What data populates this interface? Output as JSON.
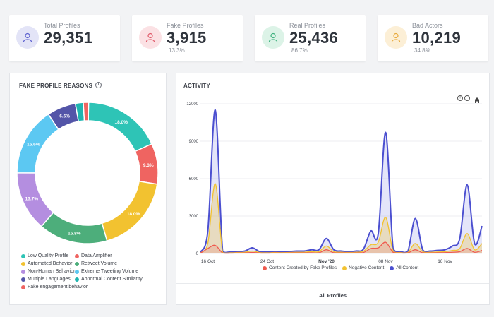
{
  "stats": [
    {
      "label": "Total Profiles",
      "value": "29,351",
      "percent": "",
      "icon": "user-icon",
      "color": "#5b5fcf",
      "bg": "#e3e4f7"
    },
    {
      "label": "Fake Profiles",
      "value": "3,915",
      "percent": "13.3%",
      "icon": "user-icon",
      "color": "#e05a6a",
      "bg": "#fbe1e4"
    },
    {
      "label": "Real Profiles",
      "value": "25,436",
      "percent": "86.7%",
      "icon": "user-icon",
      "color": "#3fb27f",
      "bg": "#dcf3e7"
    },
    {
      "label": "Bad Actors",
      "value": "10,219",
      "percent": "34.8%",
      "icon": "user-icon",
      "color": "#e8a93b",
      "bg": "#fcefd6"
    }
  ],
  "fake_reasons": {
    "title": "FAKE PROFILE REASONS",
    "info_icon": "info-icon",
    "legend": [
      {
        "label": "Low Quality Profile",
        "color": "#2ec4b6"
      },
      {
        "label": "Data Amplifier",
        "color": "#ef6461"
      },
      {
        "label": "Automated Behavior",
        "color": "#f2c230"
      },
      {
        "label": "Retweet Volume",
        "color": "#4dae7b"
      },
      {
        "label": "Non-Human Behavior",
        "color": "#b48ee0"
      },
      {
        "label": "Extreme Tweeting Volume",
        "color": "#5cc8f2"
      },
      {
        "label": "Multiple Languages",
        "color": "#5355a8"
      },
      {
        "label": "Abnormal Content Similarity",
        "color": "#1fb5b0"
      },
      {
        "label": "Fake engagement behavior",
        "color": "#ef6461"
      }
    ]
  },
  "chart_data": [
    {
      "type": "pie",
      "title": "FAKE PROFILE REASONS",
      "donut": true,
      "slices": [
        {
          "label": "Low Quality Profile",
          "value": 18.0,
          "text": "18.0%",
          "color": "#2ec4b6"
        },
        {
          "label": "Data Amplifier",
          "value": 9.3,
          "text": "9.3%",
          "color": "#ef6461"
        },
        {
          "label": "Automated Behavior",
          "value": 18.0,
          "text": "18.0%",
          "color": "#f2c230"
        },
        {
          "label": "Retweet Volume",
          "value": 15.8,
          "text": "15.8%",
          "color": "#4dae7b"
        },
        {
          "label": "Non-Human Behavior",
          "value": 13.7,
          "text": "13.7%",
          "color": "#b48ee0"
        },
        {
          "label": "Extreme Tweeting Volume",
          "value": 15.6,
          "text": "15.6%",
          "color": "#5cc8f2"
        },
        {
          "label": "Multiple Languages",
          "value": 6.6,
          "text": "6.6%",
          "color": "#5355a8"
        },
        {
          "label": "Abnormal Content Similarity",
          "value": 1.8,
          "text": "",
          "color": "#1fb5b0"
        },
        {
          "label": "Fake engagement behavior",
          "value": 1.2,
          "text": "",
          "color": "#ef6461"
        }
      ]
    },
    {
      "type": "area",
      "title": "ACTIVITY",
      "ylim": [
        0,
        12000
      ],
      "yticks": [
        "12000",
        "9000",
        "6000",
        "3000",
        "0"
      ],
      "xticks": [
        {
          "label": "16 Oct",
          "x": 1,
          "bold": false
        },
        {
          "label": "24 Oct",
          "x": 9,
          "bold": false
        },
        {
          "label": "Nov '20",
          "x": 17,
          "bold": true
        },
        {
          "label": "08 Nov",
          "x": 25,
          "bold": false
        },
        {
          "label": "16 Nov",
          "x": 33,
          "bold": false
        }
      ],
      "x": [
        0,
        1,
        2,
        3,
        4,
        5,
        6,
        7,
        8,
        9,
        10,
        11,
        12,
        13,
        14,
        15,
        16,
        17,
        18,
        19,
        20,
        21,
        22,
        23,
        24,
        25,
        26,
        27,
        28,
        29,
        30,
        31,
        32,
        33,
        34,
        35,
        36,
        37,
        38
      ],
      "series": [
        {
          "name": "All Content",
          "color": "#4b4fd0",
          "fill": "rgba(105,110,220,0.18)",
          "values": [
            100,
            1800,
            11500,
            150,
            120,
            150,
            200,
            450,
            150,
            120,
            150,
            130,
            150,
            200,
            200,
            300,
            300,
            1200,
            300,
            200,
            150,
            200,
            350,
            1800,
            1600,
            9700,
            400,
            150,
            180,
            2800,
            300,
            200,
            250,
            300,
            600,
            1200,
            5500,
            800,
            2200
          ]
        },
        {
          "name": "Negative Content",
          "color": "#f2c230",
          "fill": "rgba(242,194,48,0.28)",
          "values": [
            50,
            800,
            5600,
            80,
            60,
            80,
            100,
            200,
            80,
            60,
            80,
            70,
            80,
            100,
            100,
            150,
            150,
            600,
            150,
            100,
            80,
            100,
            180,
            700,
            900,
            2900,
            200,
            80,
            90,
            800,
            150,
            100,
            120,
            150,
            250,
            400,
            1600,
            300,
            800
          ]
        },
        {
          "name": "Content Created by Fake Profiles",
          "color": "#ef5a4f",
          "fill": "rgba(239,90,79,0.18)",
          "values": [
            30,
            400,
            650,
            40,
            30,
            40,
            50,
            80,
            40,
            30,
            40,
            35,
            40,
            50,
            50,
            60,
            60,
            300,
            60,
            50,
            40,
            50,
            80,
            400,
            450,
            900,
            100,
            40,
            50,
            300,
            60,
            50,
            60,
            70,
            100,
            150,
            400,
            100,
            250
          ]
        }
      ],
      "xlabel": "All Profiles"
    }
  ],
  "activity": {
    "title": "ACTIVITY",
    "zoom_in_icon": "zoom-in-icon",
    "zoom_out_icon": "zoom-out-icon",
    "home_icon": "home-icon",
    "footer": "All Profiles",
    "legend": [
      {
        "label": "Content Created by Fake Profiles",
        "color": "#ef5a4f"
      },
      {
        "label": "Negative Content",
        "color": "#f2c230"
      },
      {
        "label": "All Content",
        "color": "#4b4fd0"
      }
    ]
  }
}
